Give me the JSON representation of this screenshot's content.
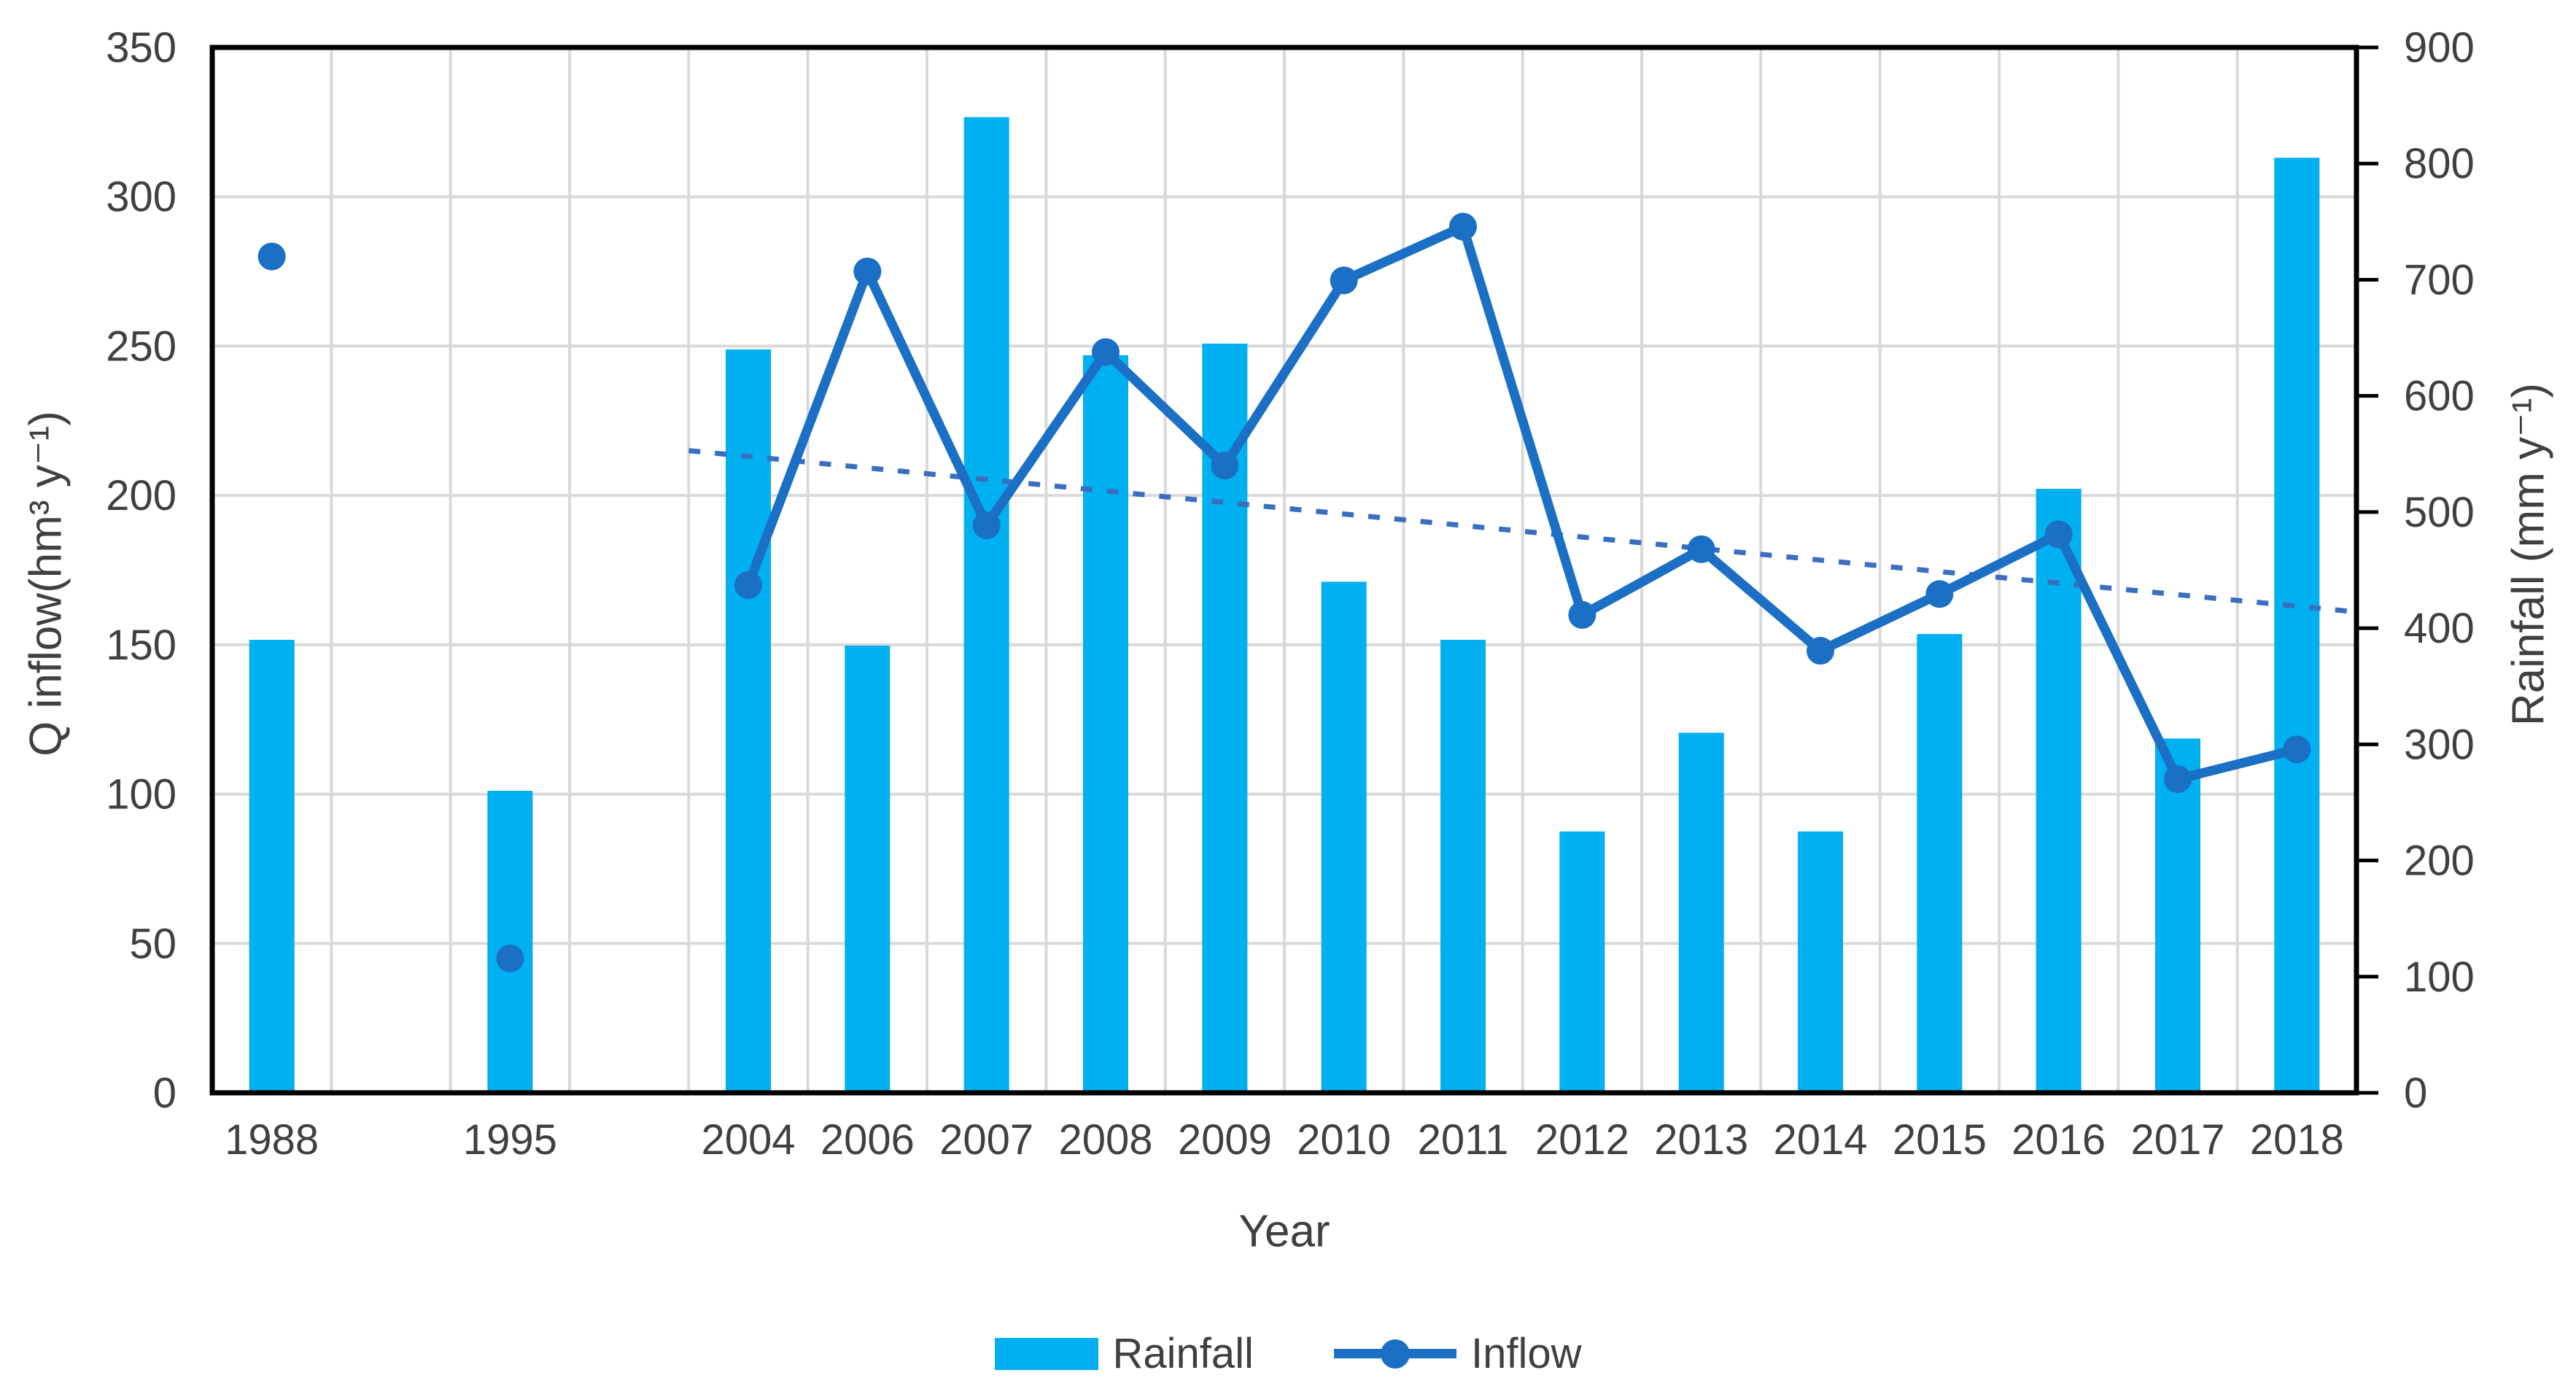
{
  "chart_data": {
    "type": "combo-bar-line",
    "title": "",
    "x_title": "Year",
    "y_left": {
      "title": "Q inflow(hm³ y⁻¹)",
      "min": 0,
      "max": 350,
      "step": 50
    },
    "y_right": {
      "title": "Rainfall (mm y⁻¹)",
      "min": 0,
      "max": 900,
      "step": 100
    },
    "categories": [
      "1988",
      "",
      "1995",
      "",
      "2004",
      "2006",
      "2007",
      "2008",
      "2009",
      "2010",
      "2011",
      "2012",
      "2013",
      "2014",
      "2015",
      "2016",
      "2017",
      "2018"
    ],
    "series": [
      {
        "name": "Rainfall",
        "type": "bar",
        "axis": "right",
        "values": [
          390,
          null,
          260,
          null,
          640,
          385,
          840,
          635,
          645,
          440,
          390,
          225,
          310,
          225,
          395,
          520,
          305,
          805
        ]
      },
      {
        "name": "Inflow",
        "type": "line",
        "axis": "left",
        "values": [
          280,
          null,
          45,
          null,
          170,
          275,
          190,
          248,
          210,
          272,
          290,
          160,
          182,
          148,
          167,
          187,
          105,
          115
        ]
      }
    ],
    "trend": {
      "name": "Inflow linear trend",
      "axis": "left",
      "start_slot": 4,
      "start_value": 215,
      "end_value": 161,
      "dashed": true
    },
    "legend": {
      "rainfall_label": "Rainfall",
      "inflow_label": "Inflow"
    },
    "colors": {
      "bar": "#00B0F0",
      "line": "#1B6FC4",
      "marker": "#1B6FC4",
      "trend": "#3A6FC0",
      "grid": "#D9D9D9",
      "axis": "#000000",
      "text": "#404040"
    },
    "layout": {
      "grid": "both",
      "legend_position": "bottom",
      "gap_slots_blank": [
        1,
        3
      ]
    }
  }
}
